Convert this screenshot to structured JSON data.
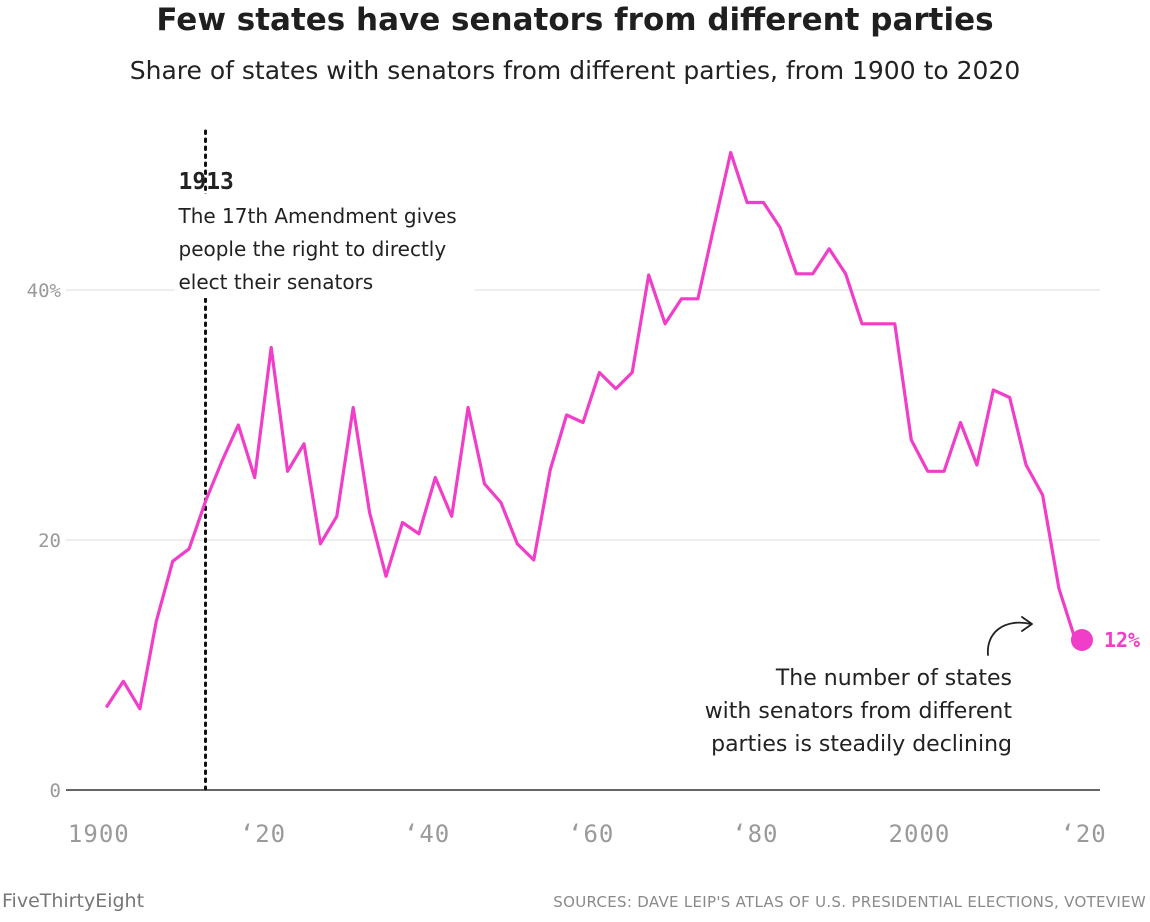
{
  "title": "Few states have senators from different parties",
  "subtitle": "Share of states with senators from different parties, from 1900 to 2020",
  "chart_data": {
    "type": "line",
    "title": "Few states have senators from different parties",
    "subtitle": "Share of states with senators from different parties, from 1900 to 2020",
    "xlabel": "",
    "ylabel": "",
    "xlim": [
      1896,
      2022
    ],
    "ylim": [
      0,
      52
    ],
    "grid": true,
    "x_ticks": [
      {
        "value": 1900,
        "label": "1900"
      },
      {
        "value": 1920,
        "label": "‘20"
      },
      {
        "value": 1940,
        "label": "‘40"
      },
      {
        "value": 1960,
        "label": "‘60"
      },
      {
        "value": 1980,
        "label": "‘80"
      },
      {
        "value": 2000,
        "label": "2000"
      },
      {
        "value": 2020,
        "label": "‘20"
      }
    ],
    "y_ticks": [
      {
        "value": 0,
        "label": "0"
      },
      {
        "value": 20,
        "label": "20"
      },
      {
        "value": 40,
        "label": "40%"
      }
    ],
    "series": [
      {
        "color": "#f13ec8",
        "points": [
          [
            1901,
            6.7
          ],
          [
            1903,
            8.7
          ],
          [
            1905,
            6.5
          ],
          [
            1907,
            13.5
          ],
          [
            1909,
            18.3
          ],
          [
            1911,
            19.3
          ],
          [
            1913,
            23.1
          ],
          [
            1915,
            26.3
          ],
          [
            1917,
            29.2
          ],
          [
            1919,
            25.0
          ],
          [
            1921,
            35.4
          ],
          [
            1923,
            25.5
          ],
          [
            1925,
            27.7
          ],
          [
            1927,
            19.7
          ],
          [
            1929,
            21.9
          ],
          [
            1931,
            30.6
          ],
          [
            1933,
            22.2
          ],
          [
            1935,
            17.1
          ],
          [
            1937,
            21.4
          ],
          [
            1939,
            20.5
          ],
          [
            1941,
            25.0
          ],
          [
            1943,
            21.9
          ],
          [
            1945,
            30.6
          ],
          [
            1947,
            24.5
          ],
          [
            1949,
            23.0
          ],
          [
            1951,
            19.7
          ],
          [
            1953,
            18.4
          ],
          [
            1955,
            25.6
          ],
          [
            1957,
            30.0
          ],
          [
            1959,
            29.4
          ],
          [
            1961,
            33.4
          ],
          [
            1963,
            32.1
          ],
          [
            1965,
            33.4
          ],
          [
            1967,
            41.2
          ],
          [
            1969,
            37.3
          ],
          [
            1971,
            39.3
          ],
          [
            1973,
            39.3
          ],
          [
            1975,
            45.2
          ],
          [
            1977,
            51.0
          ],
          [
            1979,
            47.0
          ],
          [
            1981,
            47.0
          ],
          [
            1983,
            45.0
          ],
          [
            1985,
            41.3
          ],
          [
            1987,
            41.3
          ],
          [
            1989,
            43.3
          ],
          [
            1991,
            41.3
          ],
          [
            1993,
            37.3
          ],
          [
            1995,
            37.3
          ],
          [
            1997,
            37.3
          ],
          [
            1999,
            28.0
          ],
          [
            2001,
            25.5
          ],
          [
            2003,
            25.5
          ],
          [
            2005,
            29.4
          ],
          [
            2007,
            26.0
          ],
          [
            2009,
            32.0
          ],
          [
            2011,
            31.4
          ],
          [
            2013,
            26.0
          ],
          [
            2015,
            23.6
          ],
          [
            2017,
            16.1
          ],
          [
            2019,
            12.0
          ]
        ]
      }
    ],
    "end_point": {
      "x": 2019.8,
      "y": 12,
      "label": "12%"
    },
    "vertical_marker": {
      "x": 1913,
      "style": "dotted"
    },
    "annotations": [
      {
        "year": "1913",
        "lines": [
          "The 17th Amendment gives",
          "people the right to directly",
          "elect their senators"
        ]
      },
      {
        "lines": [
          "The number of states",
          "with senators from different",
          "parties is steadily declining"
        ]
      }
    ]
  },
  "footer": {
    "brand": "FiveThirtyEight",
    "source": "SOURCES: DAVE LEIP'S ATLAS OF U.S. PRESIDENTIAL ELECTIONS, VOTEVIEW"
  }
}
